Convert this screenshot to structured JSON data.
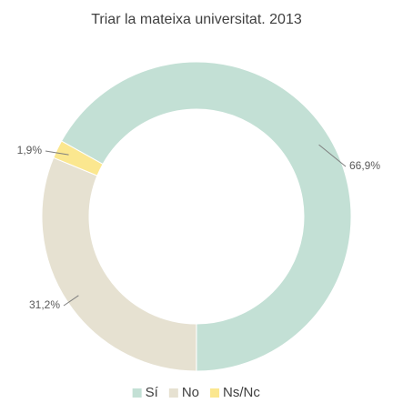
{
  "chart_data": {
    "type": "pie",
    "donut": true,
    "title": "Triar la mateixa universitat. 2013",
    "categories": [
      "Sí",
      "No",
      "Ns/Nc"
    ],
    "values": [
      66.9,
      31.2,
      1.9
    ],
    "value_labels": [
      "66,9%",
      "31,2%",
      "1,9%"
    ],
    "colors": [
      "#c3e0d5",
      "#e6e1d1",
      "#fbe78f"
    ],
    "legend": "bottom"
  }
}
